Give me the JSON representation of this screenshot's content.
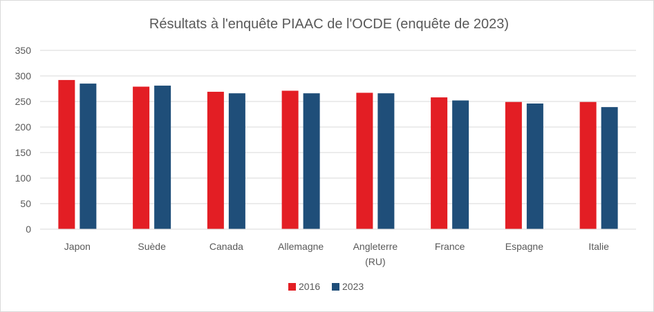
{
  "chart_data": {
    "type": "bar",
    "title": "Résultats à l'enquête PIAAC de l'OCDE  (enquête de 2023)",
    "xlabel": "",
    "ylabel": "",
    "categories": [
      [
        "Japon"
      ],
      [
        "Suède"
      ],
      [
        "Canada"
      ],
      [
        "Allemagne"
      ],
      [
        "Angleterre",
        "(RU)"
      ],
      [
        "France"
      ],
      [
        "Espagne"
      ],
      [
        "Italie"
      ]
    ],
    "series": [
      {
        "name": "2016",
        "color": "#e31e24",
        "values": [
          292,
          279,
          269,
          271,
          267,
          258,
          249,
          249
        ]
      },
      {
        "name": "2023",
        "color": "#1f4e79",
        "values": [
          285,
          281,
          266,
          266,
          266,
          252,
          246,
          239
        ]
      }
    ],
    "ylim": [
      0,
      350
    ],
    "yticks": [
      0,
      50,
      100,
      150,
      200,
      250,
      300,
      350
    ],
    "grid": true,
    "legend": "bottom-center"
  }
}
